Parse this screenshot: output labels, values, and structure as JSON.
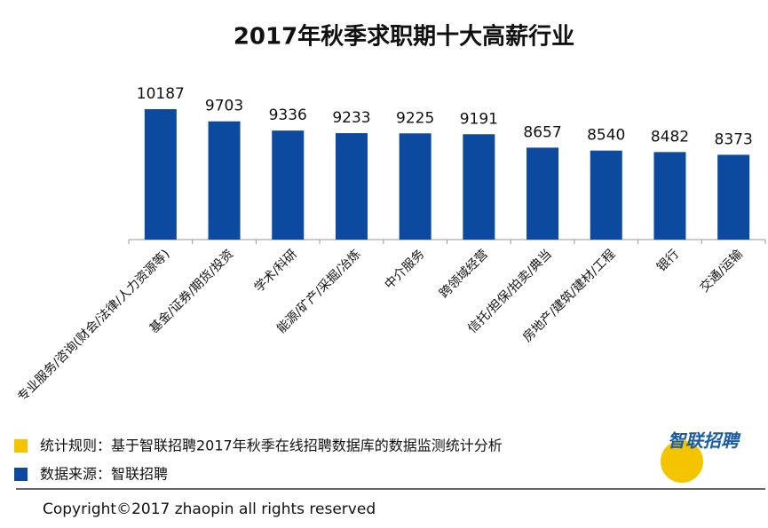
{
  "chart_data": {
    "type": "bar",
    "title": "2017年秋季求职期十大高薪行业",
    "categories": [
      "专业服务/咨询(财会/法律/人力资源等)",
      "基金/证券/期货/投资",
      "学术/科研",
      "能源/矿产/采掘/冶炼",
      "中介服务",
      "跨领域经营",
      "信托/担保/拍卖/典当",
      "房地产/建筑/建材/工程",
      "银行",
      "交通/运输"
    ],
    "values": [
      10187,
      9703,
      9336,
      9233,
      9225,
      9191,
      8657,
      8540,
      8482,
      8373
    ],
    "color": "#0b4a9e",
    "ylim": [
      5000,
      11000
    ],
    "notes": [
      {
        "text": "统计规则：基于智联招聘2017年秋季在线招聘数据库的数据监测统计分析",
        "color": "#f5c400"
      },
      {
        "text": "数据来源：智联招聘",
        "color": "#0b4a9e"
      }
    ],
    "logo": "智联招聘",
    "copyright": "Copyright©2017 zhaopin all rights reserved"
  }
}
